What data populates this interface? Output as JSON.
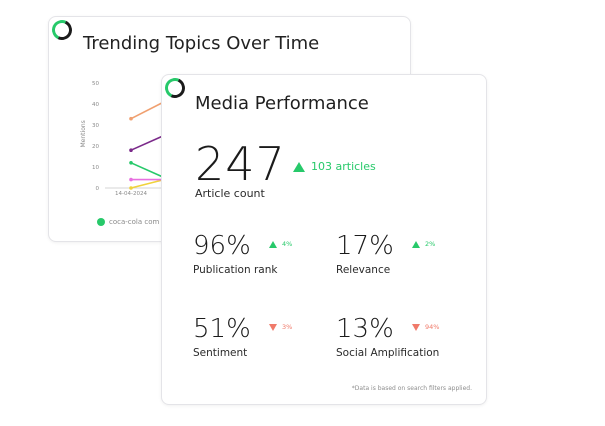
{
  "trending_card": {
    "title": "Trending Topics Over Time",
    "legend_label": "coca-cola com",
    "icon": "ring-logo-icon"
  },
  "chart_data": {
    "type": "line",
    "title": "Trending Topics Over Time",
    "xlabel": "",
    "ylabel": "Mentions",
    "ylim": [
      0,
      50
    ],
    "yticks": [
      0,
      10,
      20,
      30,
      40,
      50
    ],
    "x": [
      "14-04-2024",
      ""
    ],
    "series": [
      {
        "name": "coca-cola com",
        "color": "#27c96a",
        "values": [
          12,
          5
        ]
      },
      {
        "color": "#f0a070",
        "values": [
          33,
          41
        ]
      },
      {
        "color": "#7b2a8a",
        "values": [
          18,
          25
        ]
      },
      {
        "color": "#f0d23c",
        "values": [
          0,
          4
        ]
      },
      {
        "color": "#e870e0",
        "values": [
          4,
          4
        ]
      }
    ]
  },
  "media_card": {
    "title": "Media Performance",
    "icon": "ring-logo-icon",
    "article_count": "247",
    "article_count_label": "Article count",
    "article_change": "103 articles",
    "footnote": "*Data is based on search filters applied."
  },
  "metrics": [
    {
      "value": "96%",
      "label": "Publication rank",
      "change": "4%",
      "direction": "up"
    },
    {
      "value": "17%",
      "label": "Relevance",
      "change": "2%",
      "direction": "up"
    },
    {
      "value": "51%",
      "label": "Sentiment",
      "change": "3%",
      "direction": "down"
    },
    {
      "value": "13%",
      "label": "Social Amplification",
      "change": "94%",
      "direction": "down"
    }
  ],
  "colors": {
    "accent_green": "#27c96a",
    "down_red": "#f07a6a"
  }
}
